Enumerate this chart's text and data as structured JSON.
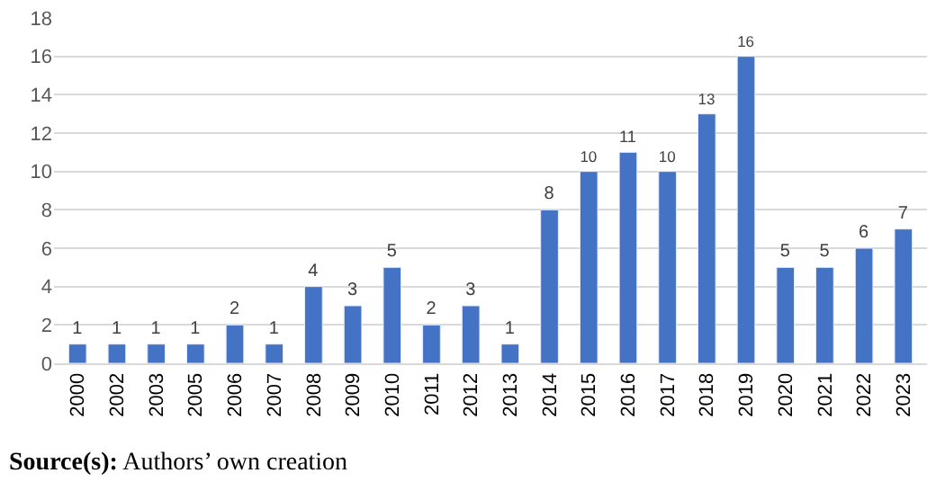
{
  "chart_data": {
    "type": "bar",
    "categories": [
      "2000",
      "2002",
      "2003",
      "2005",
      "2006",
      "2007",
      "2008",
      "2009",
      "2010",
      "2011",
      "2012",
      "2013",
      "2014",
      "2015",
      "2016",
      "2017",
      "2018",
      "2019",
      "2020",
      "2021",
      "2022",
      "2023"
    ],
    "values": [
      1,
      1,
      1,
      1,
      2,
      1,
      4,
      3,
      5,
      2,
      3,
      1,
      8,
      10,
      11,
      10,
      13,
      16,
      5,
      5,
      6,
      7
    ],
    "color": "#4472c4",
    "ylim": [
      0,
      18
    ],
    "yticks": [
      0,
      2,
      4,
      6,
      8,
      10,
      12,
      14,
      16,
      18
    ],
    "grid": "y",
    "data_labels": true,
    "annotations": [
      "Source(s): Authors’ own creation"
    ]
  }
}
